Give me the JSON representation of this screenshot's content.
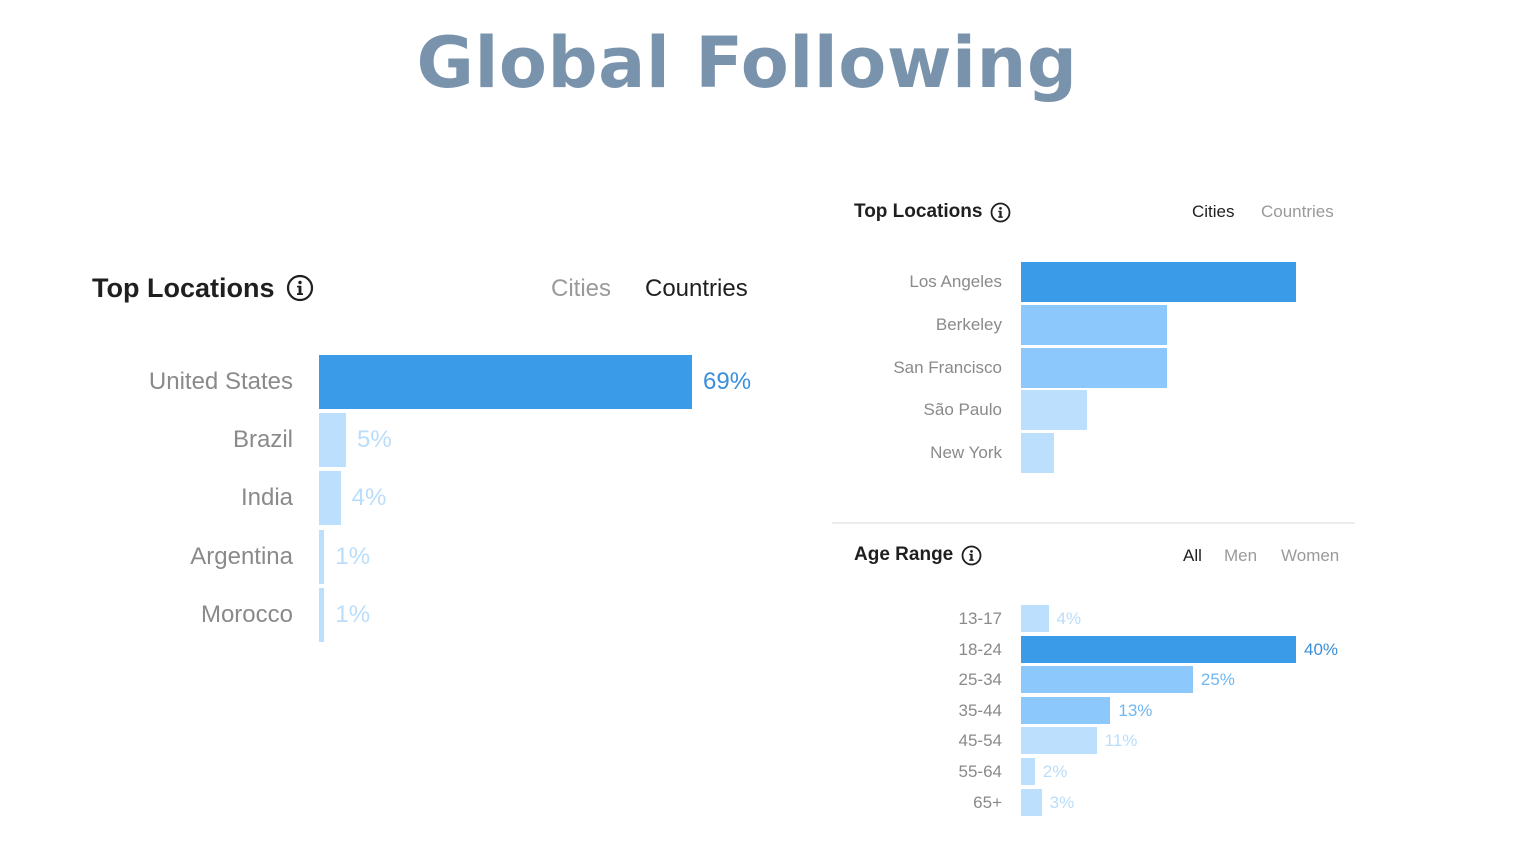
{
  "page": {
    "title": "Global Following"
  },
  "colors": {
    "dark_bar": "#3a9be8",
    "mid_bar": "#8cc8fb",
    "light_bar": "#bcdffd",
    "dark_label": "#3a8fd9",
    "mid_label": "#6fb6f1",
    "light_label": "#b9ddfb"
  },
  "countries_panel": {
    "title": "Top Locations",
    "tabs": [
      {
        "label": "Cities",
        "active": false
      },
      {
        "label": "Countries",
        "active": true
      }
    ]
  },
  "cities_panel": {
    "title": "Top Locations",
    "tabs": [
      {
        "label": "Cities",
        "active": true
      },
      {
        "label": "Countries",
        "active": false
      }
    ]
  },
  "age_panel": {
    "title": "Age Range",
    "tabs": [
      {
        "label": "All",
        "active": true
      },
      {
        "label": "Men",
        "active": false
      },
      {
        "label": "Women",
        "active": false
      }
    ]
  },
  "chart_data": [
    {
      "type": "bar",
      "orientation": "horizontal",
      "title": "Top Locations",
      "categories": [
        "United States",
        "Brazil",
        "India",
        "Argentina",
        "Morocco"
      ],
      "values": [
        69,
        5,
        4,
        1,
        1
      ],
      "value_labels": [
        "69%",
        "5%",
        "4%",
        "1%",
        "1%"
      ],
      "tones": [
        "dark",
        "light",
        "light",
        "light",
        "light"
      ]
    },
    {
      "type": "bar",
      "orientation": "horizontal",
      "title": "Top Locations",
      "categories": [
        "Los Angeles",
        "Berkeley",
        "San Francisco",
        "São Paulo",
        "New York"
      ],
      "values": [
        100,
        53,
        53,
        24,
        12
      ],
      "value_labels": [],
      "tones": [
        "dark",
        "mid",
        "mid",
        "light",
        "light"
      ]
    },
    {
      "type": "bar",
      "orientation": "horizontal",
      "title": "Age Range",
      "categories": [
        "13-17",
        "18-24",
        "25-34",
        "35-44",
        "45-54",
        "55-64",
        "65+"
      ],
      "values": [
        4,
        40,
        25,
        13,
        11,
        2,
        3
      ],
      "value_labels": [
        "4%",
        "40%",
        "25%",
        "13%",
        "11%",
        "2%",
        "3%"
      ],
      "tones": [
        "light",
        "dark",
        "mid",
        "mid",
        "light",
        "light",
        "light"
      ]
    }
  ]
}
